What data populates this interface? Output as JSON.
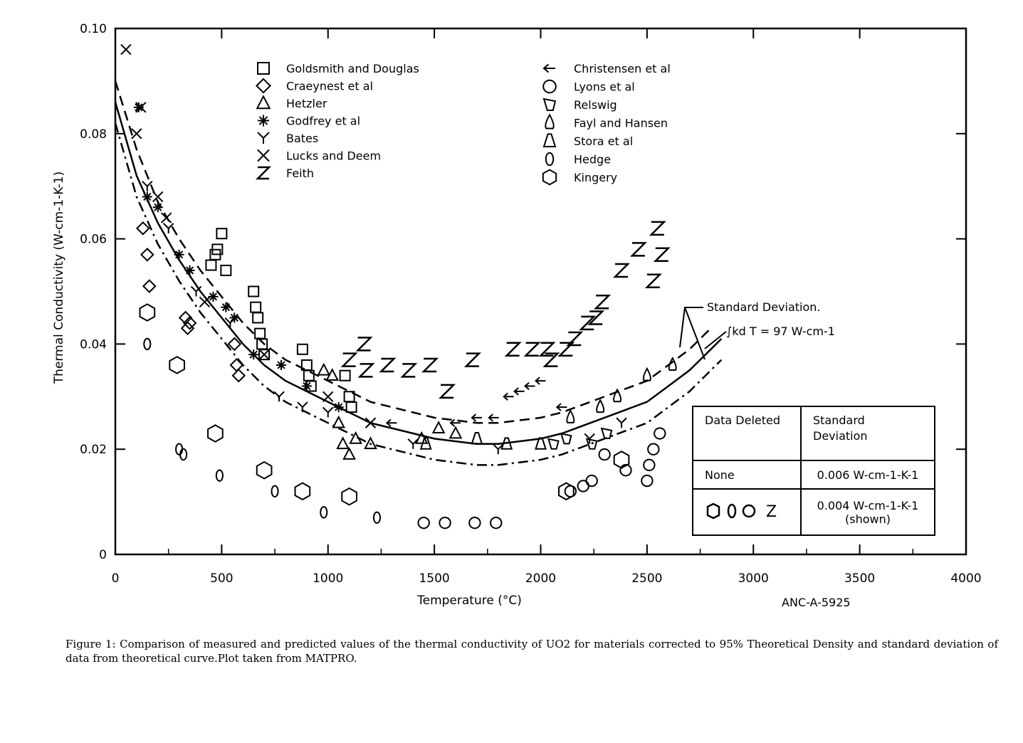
{
  "caption": "Figure 1: Comparison of measured and predicted values of the thermal conductivity of UO2 for materials corrected to 95% Theoretical Density and standard deviation of data from theoretical curve.Plot taken from MATPRO.",
  "chart_data": {
    "type": "scatter",
    "title": "",
    "xlabel": "Temperature (°C)",
    "ylabel": "Thermal Conductivity (W-cm-1-K-1)",
    "xlim": [
      0,
      4000
    ],
    "ylim": [
      0,
      0.1
    ],
    "x_ticks": [
      "0",
      "500",
      "1000",
      "1500",
      "2000",
      "2500",
      "3000",
      "3500",
      "4000"
    ],
    "y_ticks": [
      "0",
      "0.02",
      "0.04",
      "0.06",
      "0.08",
      "0.10"
    ],
    "figure_id": "ANC-A-5925",
    "annotation_std": "Standard Deviation.",
    "annotation_integral": "∫kd T = 97  W-cm-1",
    "legend_left": [
      "Goldsmith and Douglas",
      "Craeynest et al",
      "Hetzler",
      "Godfrey et al",
      "Bates",
      "Lucks and Deem",
      "Feith"
    ],
    "legend_right": [
      "Christensen et al",
      "Lyons et al",
      "Relswig",
      "Fayl and Hansen",
      "Stora et al",
      "Hedge",
      "Kingery"
    ],
    "table": {
      "col1_header": "Data Deleted",
      "col2_header": "Standard Deviation",
      "row1_col1": "None",
      "row1_col2": "0.006 W-cm-1-K-1",
      "row2_col2_line1": "0.004 W-cm-1-K-1",
      "row2_col2_line2": "(shown)",
      "row2_col1_marker_feith": "Z"
    },
    "curves": {
      "theoretical": [
        [
          0,
          0.086
        ],
        [
          100,
          0.072
        ],
        [
          200,
          0.063
        ],
        [
          300,
          0.056
        ],
        [
          400,
          0.05
        ],
        [
          500,
          0.045
        ],
        [
          600,
          0.04
        ],
        [
          700,
          0.036
        ],
        [
          800,
          0.033
        ],
        [
          900,
          0.031
        ],
        [
          1000,
          0.029
        ],
        [
          1100,
          0.027
        ],
        [
          1200,
          0.025
        ],
        [
          1300,
          0.024
        ],
        [
          1400,
          0.023
        ],
        [
          1500,
          0.022
        ],
        [
          1600,
          0.0215
        ],
        [
          1700,
          0.021
        ],
        [
          1800,
          0.021
        ],
        [
          1900,
          0.0215
        ],
        [
          2000,
          0.022
        ],
        [
          2100,
          0.023
        ],
        [
          2200,
          0.0245
        ],
        [
          2300,
          0.026
        ],
        [
          2400,
          0.0275
        ],
        [
          2500,
          0.029
        ],
        [
          2600,
          0.032
        ],
        [
          2700,
          0.035
        ],
        [
          2800,
          0.039
        ],
        [
          2850,
          0.041
        ]
      ],
      "upper_bound": [
        [
          0,
          0.09
        ],
        [
          100,
          0.077
        ],
        [
          200,
          0.067
        ],
        [
          300,
          0.06
        ],
        [
          400,
          0.054
        ],
        [
          500,
          0.049
        ],
        [
          600,
          0.044
        ],
        [
          700,
          0.04
        ],
        [
          800,
          0.037
        ],
        [
          900,
          0.035
        ],
        [
          1000,
          0.033
        ],
        [
          1100,
          0.031
        ],
        [
          1200,
          0.029
        ],
        [
          1300,
          0.028
        ],
        [
          1400,
          0.027
        ],
        [
          1500,
          0.026
        ],
        [
          1600,
          0.0255
        ],
        [
          1700,
          0.025
        ],
        [
          1800,
          0.025
        ],
        [
          1900,
          0.0255
        ],
        [
          2000,
          0.026
        ],
        [
          2100,
          0.027
        ],
        [
          2200,
          0.0285
        ],
        [
          2300,
          0.03
        ],
        [
          2400,
          0.0315
        ],
        [
          2500,
          0.033
        ],
        [
          2600,
          0.036
        ],
        [
          2700,
          0.039
        ],
        [
          2800,
          0.043
        ]
      ],
      "lower_bound": [
        [
          0,
          0.082
        ],
        [
          100,
          0.068
        ],
        [
          200,
          0.059
        ],
        [
          300,
          0.052
        ],
        [
          400,
          0.046
        ],
        [
          500,
          0.041
        ],
        [
          600,
          0.036
        ],
        [
          700,
          0.032
        ],
        [
          800,
          0.029
        ],
        [
          900,
          0.027
        ],
        [
          1000,
          0.025
        ],
        [
          1100,
          0.023
        ],
        [
          1200,
          0.021
        ],
        [
          1300,
          0.02
        ],
        [
          1400,
          0.019
        ],
        [
          1500,
          0.018
        ],
        [
          1600,
          0.0175
        ],
        [
          1700,
          0.017
        ],
        [
          1800,
          0.017
        ],
        [
          1900,
          0.0175
        ],
        [
          2000,
          0.018
        ],
        [
          2100,
          0.019
        ],
        [
          2200,
          0.0205
        ],
        [
          2300,
          0.022
        ],
        [
          2400,
          0.0235
        ],
        [
          2500,
          0.025
        ],
        [
          2600,
          0.028
        ],
        [
          2700,
          0.031
        ],
        [
          2800,
          0.035
        ],
        [
          2850,
          0.037
        ]
      ]
    },
    "series": [
      {
        "name": "Goldsmith and Douglas",
        "marker": "square",
        "points": [
          [
            450,
            0.055
          ],
          [
            470,
            0.057
          ],
          [
            480,
            0.058
          ],
          [
            500,
            0.061
          ],
          [
            520,
            0.054
          ],
          [
            650,
            0.05
          ],
          [
            660,
            0.047
          ],
          [
            670,
            0.045
          ],
          [
            680,
            0.042
          ],
          [
            690,
            0.04
          ],
          [
            700,
            0.038
          ],
          [
            880,
            0.039
          ],
          [
            900,
            0.036
          ],
          [
            910,
            0.034
          ],
          [
            920,
            0.032
          ],
          [
            1080,
            0.034
          ],
          [
            1100,
            0.03
          ],
          [
            1110,
            0.028
          ]
        ]
      },
      {
        "name": "Craeynest et al",
        "marker": "diamond",
        "points": [
          [
            130,
            0.062
          ],
          [
            150,
            0.057
          ],
          [
            160,
            0.051
          ],
          [
            330,
            0.045
          ],
          [
            340,
            0.043
          ],
          [
            350,
            0.044
          ],
          [
            560,
            0.04
          ],
          [
            570,
            0.036
          ],
          [
            580,
            0.034
          ]
        ]
      },
      {
        "name": "Hetzler",
        "marker": "triangle",
        "points": [
          [
            980,
            0.035
          ],
          [
            1020,
            0.034
          ],
          [
            1050,
            0.025
          ],
          [
            1070,
            0.021
          ],
          [
            1100,
            0.019
          ],
          [
            1130,
            0.022
          ],
          [
            1200,
            0.021
          ],
          [
            1440,
            0.022
          ],
          [
            1520,
            0.024
          ],
          [
            1600,
            0.023
          ]
        ]
      },
      {
        "name": "Godfrey et al",
        "marker": "asterisk",
        "points": [
          [
            110,
            0.085
          ],
          [
            150,
            0.068
          ],
          [
            200,
            0.066
          ],
          [
            300,
            0.057
          ],
          [
            350,
            0.054
          ],
          [
            460,
            0.049
          ],
          [
            520,
            0.047
          ],
          [
            560,
            0.045
          ],
          [
            650,
            0.038
          ],
          [
            780,
            0.036
          ],
          [
            900,
            0.032
          ],
          [
            1050,
            0.028
          ]
        ]
      },
      {
        "name": "Bates",
        "marker": "bates",
        "points": [
          [
            150,
            0.07
          ],
          [
            250,
            0.062
          ],
          [
            380,
            0.05
          ],
          [
            540,
            0.044
          ],
          [
            770,
            0.03
          ],
          [
            880,
            0.028
          ],
          [
            1000,
            0.027
          ],
          [
            1400,
            0.021
          ],
          [
            1800,
            0.02
          ],
          [
            2230,
            0.022
          ],
          [
            2380,
            0.025
          ]
        ]
      },
      {
        "name": "Lucks and Deem",
        "marker": "x",
        "points": [
          [
            50,
            0.096
          ],
          [
            100,
            0.08
          ],
          [
            120,
            0.085
          ],
          [
            200,
            0.068
          ],
          [
            240,
            0.064
          ],
          [
            420,
            0.048
          ],
          [
            700,
            0.038
          ],
          [
            1000,
            0.03
          ],
          [
            1200,
            0.025
          ]
        ]
      },
      {
        "name": "Feith",
        "marker": "z",
        "points": [
          [
            1100,
            0.037
          ],
          [
            1170,
            0.04
          ],
          [
            1180,
            0.035
          ],
          [
            1280,
            0.036
          ],
          [
            1380,
            0.035
          ],
          [
            1480,
            0.036
          ],
          [
            1560,
            0.031
          ],
          [
            1680,
            0.037
          ],
          [
            1870,
            0.039
          ],
          [
            1960,
            0.039
          ],
          [
            2030,
            0.039
          ],
          [
            2050,
            0.037
          ],
          [
            2120,
            0.039
          ],
          [
            2160,
            0.041
          ],
          [
            2220,
            0.044
          ],
          [
            2260,
            0.045
          ],
          [
            2290,
            0.048
          ],
          [
            2380,
            0.054
          ],
          [
            2460,
            0.058
          ],
          [
            2530,
            0.052
          ],
          [
            2570,
            0.057
          ],
          [
            2550,
            0.062
          ]
        ]
      },
      {
        "name": "Christensen et al",
        "marker": "arrow",
        "points": [
          [
            1300,
            0.025
          ],
          [
            1600,
            0.025
          ],
          [
            1700,
            0.026
          ],
          [
            1780,
            0.026
          ],
          [
            1850,
            0.03
          ],
          [
            1900,
            0.031
          ],
          [
            1950,
            0.032
          ],
          [
            2000,
            0.033
          ],
          [
            2100,
            0.028
          ]
        ]
      },
      {
        "name": "Lyons et al",
        "marker": "circle",
        "points": [
          [
            1450,
            0.006
          ],
          [
            1550,
            0.006
          ],
          [
            1690,
            0.006
          ],
          [
            1790,
            0.006
          ],
          [
            2140,
            0.012
          ],
          [
            2200,
            0.013
          ],
          [
            2240,
            0.014
          ],
          [
            2300,
            0.019
          ],
          [
            2400,
            0.016
          ],
          [
            2500,
            0.014
          ],
          [
            2510,
            0.017
          ],
          [
            2530,
            0.02
          ],
          [
            2560,
            0.023
          ]
        ]
      },
      {
        "name": "Relswig",
        "marker": "relswig",
        "points": [
          [
            2060,
            0.021
          ],
          [
            2120,
            0.022
          ],
          [
            2240,
            0.021
          ],
          [
            2310,
            0.023
          ]
        ]
      },
      {
        "name": "Fayl and Hansen",
        "marker": "drop",
        "points": [
          [
            2140,
            0.026
          ],
          [
            2280,
            0.028
          ],
          [
            2360,
            0.03
          ],
          [
            2500,
            0.034
          ],
          [
            2620,
            0.036
          ]
        ]
      },
      {
        "name": "Stora et al",
        "marker": "flask",
        "points": [
          [
            1460,
            0.021
          ],
          [
            1700,
            0.022
          ],
          [
            1840,
            0.021
          ],
          [
            2000,
            0.021
          ]
        ]
      },
      {
        "name": "Hedge",
        "marker": "oval",
        "points": [
          [
            150,
            0.04
          ],
          [
            300,
            0.02
          ],
          [
            320,
            0.019
          ],
          [
            490,
            0.015
          ],
          [
            750,
            0.012
          ],
          [
            980,
            0.008
          ],
          [
            1230,
            0.007
          ]
        ]
      },
      {
        "name": "Kingery",
        "marker": "hexagon",
        "points": [
          [
            150,
            0.046
          ],
          [
            290,
            0.036
          ],
          [
            470,
            0.023
          ],
          [
            700,
            0.016
          ],
          [
            880,
            0.012
          ],
          [
            1100,
            0.011
          ],
          [
            2120,
            0.012
          ],
          [
            2380,
            0.018
          ]
        ]
      }
    ]
  }
}
